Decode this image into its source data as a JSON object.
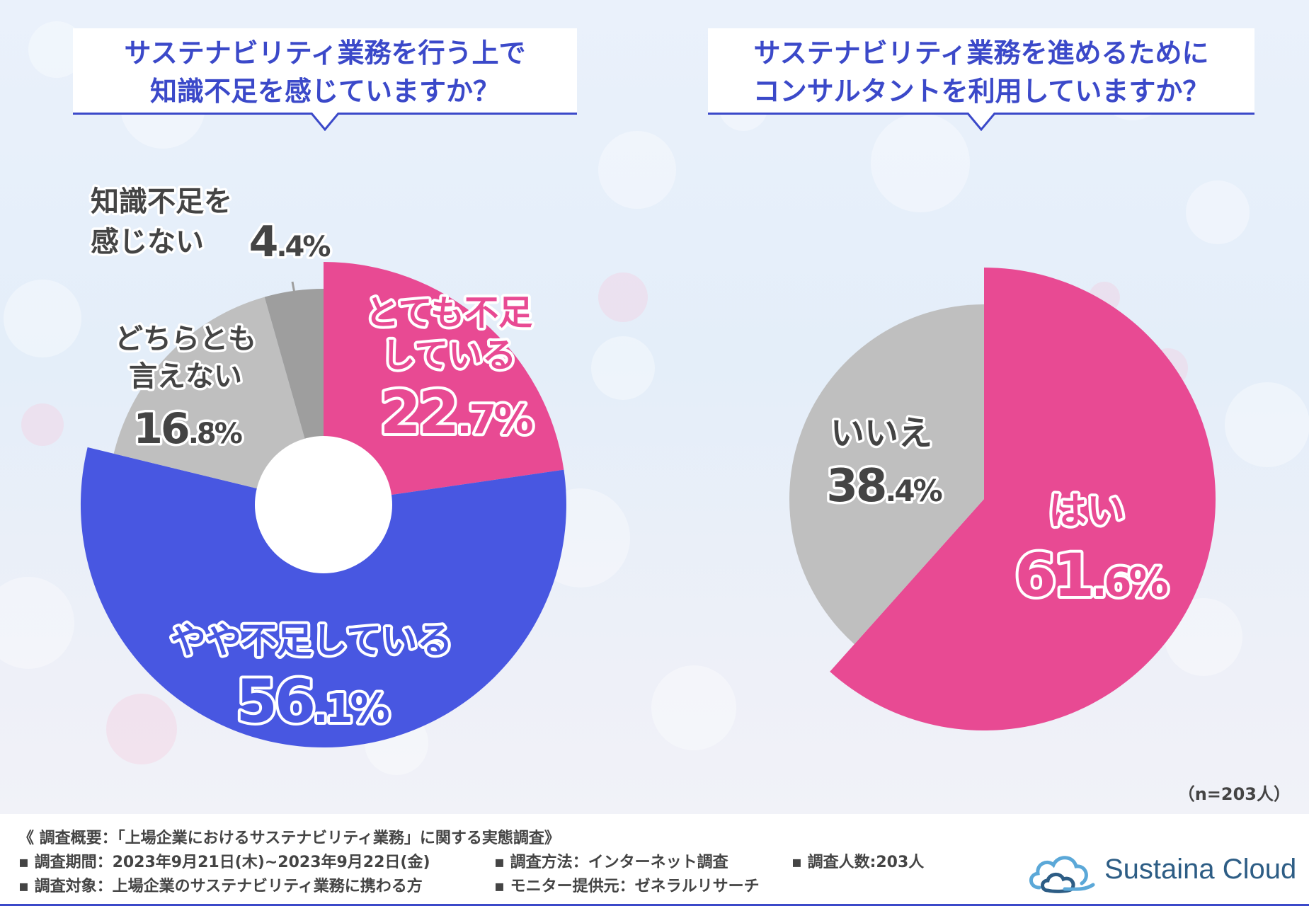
{
  "colors": {
    "pink": "#e84a93",
    "blue": "#4857e1",
    "gray": "#bfbfbf",
    "darkgray": "#9e9e9e",
    "title_blue": "#3b49c9"
  },
  "questions": {
    "q1": {
      "line1": "サステナビリティ業務を行う上で",
      "line2": "知識不足を感じていますか？"
    },
    "q2": {
      "line1": "サステナビリティ業務を進めるために",
      "line2": "コンサルタントを利用していますか？"
    }
  },
  "chart_data": [
    {
      "type": "pie",
      "variant": "donut",
      "title": "サステナビリティ業務を行う上で知識不足を感じていますか？",
      "unit": "%",
      "slices": [
        {
          "name_lines": [
            "とても不足",
            "している"
          ],
          "value_int": "22",
          "value_dec": ".7",
          "percent_sign": "%",
          "value": 22.7
        },
        {
          "name_lines": [
            "やや不足している"
          ],
          "value_int": "56",
          "value_dec": ".1",
          "percent_sign": "%",
          "value": 56.1
        },
        {
          "name_lines": [
            "どちらとも",
            "言えない"
          ],
          "value_int": "16",
          "value_dec": ".8",
          "percent_sign": "%",
          "value": 16.8
        },
        {
          "name_lines": [
            "知識不足を",
            "感じない"
          ],
          "value_int": "4",
          "value_dec": ".4",
          "percent_sign": "%",
          "value": 4.4
        }
      ]
    },
    {
      "type": "pie",
      "title": "サステナビリティ業務を進めるためにコンサルタントを利用していますか？",
      "unit": "%",
      "slices": [
        {
          "name_lines": [
            "はい"
          ],
          "value_int": "61",
          "value_dec": ".6",
          "percent_sign": "%",
          "value": 61.6
        },
        {
          "name_lines": [
            "いいえ"
          ],
          "value_int": "38",
          "value_dec": ".4",
          "percent_sign": "%",
          "value": 38.4
        }
      ]
    }
  ],
  "sample_size": "（n=203人）",
  "footer": {
    "overview": "《 調査概要：「上場企業におけるサステナビリティ業務」に関する実態調査》",
    "period": "▪ 調査期間：2023年9月21日(木)~2023年9月22日(金)",
    "method": "▪ 調査方法：インターネット調査",
    "count": "▪ 調査人数:203人",
    "target": "▪ 調査対象：上場企業のサステナビリティ業務に携わる方",
    "monitor": "▪ モニター提供元：ゼネラルリサーチ"
  },
  "logo": {
    "name": "Sustaina Cloud",
    "icon": "cloud-icon"
  }
}
